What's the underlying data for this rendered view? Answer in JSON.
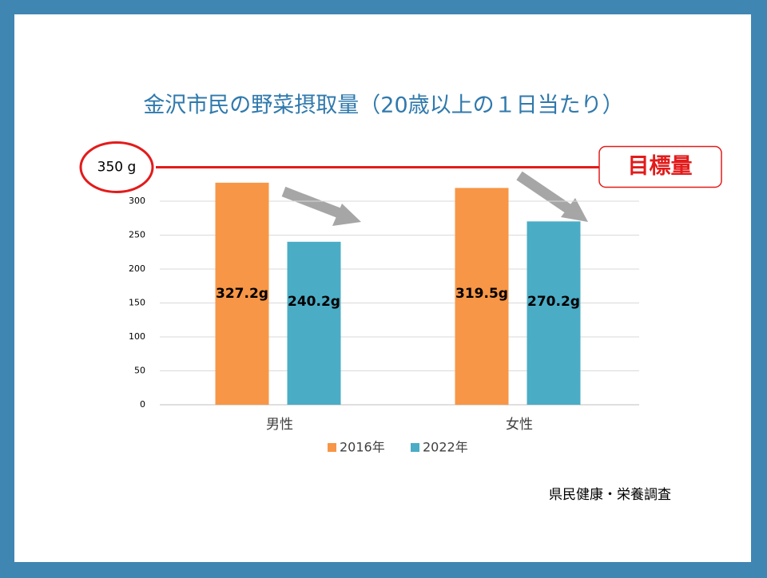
{
  "chart_data": {
    "type": "bar",
    "title": "金沢市民の野菜摂取量（20歳以上の１日当たり）",
    "categories": [
      "男性",
      "女性"
    ],
    "series": [
      {
        "name": "2016年",
        "color": "#f79646",
        "values": [
          327.2,
          319.5
        ],
        "value_labels": [
          "327.2g",
          "319.5g"
        ]
      },
      {
        "name": "2022年",
        "color": "#4bacc6",
        "values": [
          240.2,
          270.2
        ],
        "value_labels": [
          "240.2g",
          "270.2g"
        ]
      }
    ],
    "ylim": [
      0,
      350
    ],
    "yticks": [
      0,
      50,
      100,
      150,
      200,
      250,
      300
    ],
    "grid": true,
    "legend": "bottom",
    "target": {
      "value": 350,
      "label": "350 g",
      "annotation": "目標量"
    },
    "source": "県民健康・栄養調査"
  }
}
